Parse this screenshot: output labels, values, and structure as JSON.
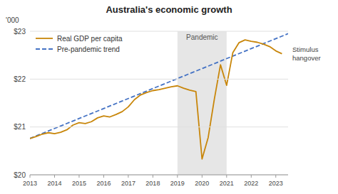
{
  "chart_data": {
    "type": "line",
    "title": "Australia's economic growth",
    "ylabel": "'000",
    "xlim": [
      2013.0,
      2023.5
    ],
    "ylim": [
      20000,
      23000
    ],
    "xticks": [
      2013,
      2014,
      2015,
      2016,
      2017,
      2018,
      2019,
      2020,
      2021,
      2022,
      2023
    ],
    "yticks": [
      {
        "value": 20000,
        "label": "$20"
      },
      {
        "value": 21000,
        "label": "$21"
      },
      {
        "value": 22000,
        "label": "$22"
      },
      {
        "value": 23000,
        "label": "$23"
      }
    ],
    "grid": true,
    "legend": "upper left",
    "series": [
      {
        "name": "Real GDP per capita",
        "color": "#c8860a",
        "line_style": "solid",
        "x": [
          2013.0,
          2013.25,
          2013.5,
          2013.75,
          2014.0,
          2014.25,
          2014.5,
          2014.75,
          2015.0,
          2015.25,
          2015.5,
          2015.75,
          2016.0,
          2016.25,
          2016.5,
          2016.75,
          2017.0,
          2017.25,
          2017.5,
          2017.75,
          2018.0,
          2018.25,
          2018.5,
          2018.75,
          2019.0,
          2019.25,
          2019.5,
          2019.75,
          2020.0,
          2020.25,
          2020.5,
          2020.75,
          2021.0,
          2021.25,
          2021.5,
          2021.75,
          2022.0,
          2022.25,
          2022.5,
          2022.75,
          2023.0,
          2023.25
        ],
        "values": [
          20760,
          20800,
          20850,
          20880,
          20860,
          20890,
          20940,
          21040,
          21090,
          21070,
          21110,
          21190,
          21230,
          21210,
          21260,
          21320,
          21420,
          21570,
          21670,
          21720,
          21760,
          21780,
          21810,
          21840,
          21860,
          21810,
          21770,
          21740,
          20330,
          20780,
          21580,
          22300,
          21870,
          22550,
          22760,
          22820,
          22790,
          22770,
          22730,
          22680,
          22590,
          22530
        ]
      },
      {
        "name": "Pre-pandemic trend",
        "color": "#4472c4",
        "line_style": "dashed",
        "x": [
          2013.0,
          2023.5
        ],
        "values": [
          20760,
          22950
        ]
      }
    ],
    "annotations": [
      {
        "text": "Pandemic",
        "x_start": 2019.0,
        "x_end": 2021.0
      },
      {
        "text": "Stimulus\nhangover"
      }
    ]
  }
}
